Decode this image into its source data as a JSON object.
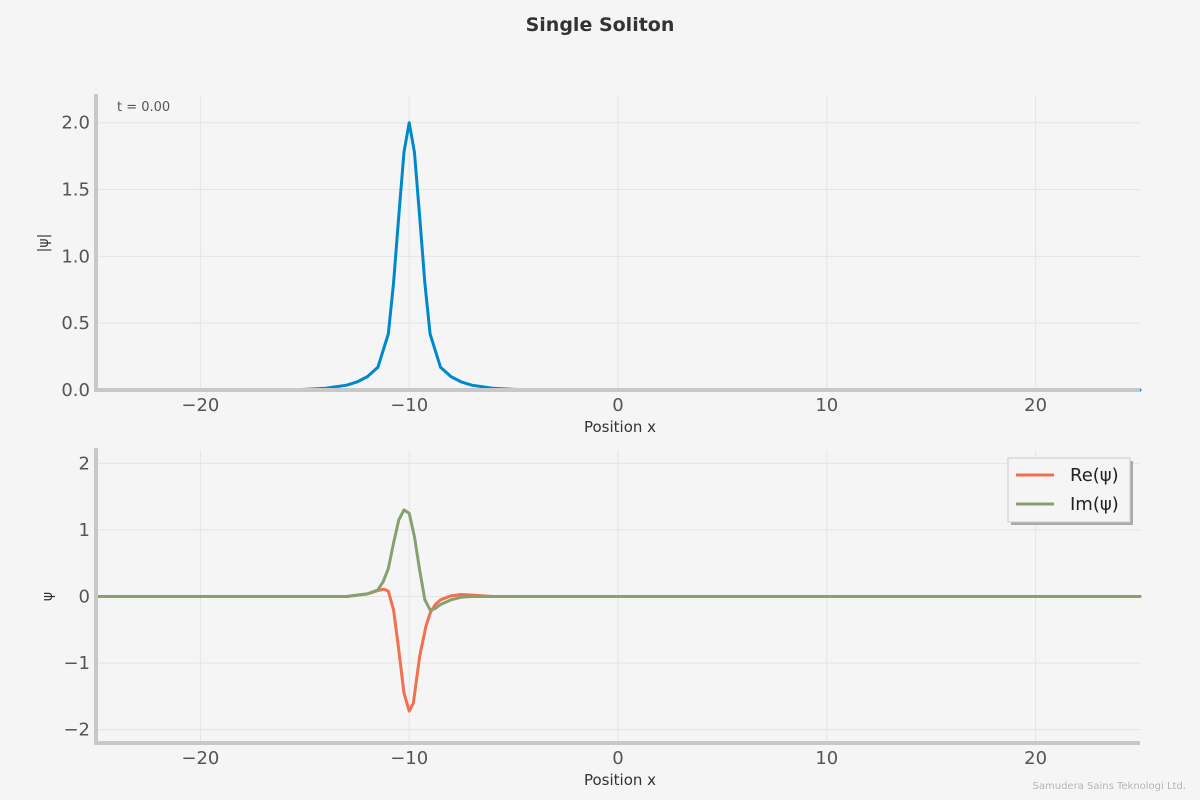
{
  "chart_data": [
    {
      "type": "line",
      "title": "Single Soliton",
      "xlabel": "Position x",
      "ylabel": "|ψ|",
      "xlim": [
        -25,
        25
      ],
      "ylim": [
        0,
        2.2
      ],
      "xticks": [
        "−20",
        "−10",
        "0",
        "10",
        "20"
      ],
      "xtick_values": [
        -20,
        -10,
        0,
        10,
        20
      ],
      "yticks": [
        "0.0",
        "0.5",
        "1.0",
        "1.5",
        "2.0"
      ],
      "ytick_values": [
        0,
        0.5,
        1.0,
        1.5,
        2.0
      ],
      "annotation": "t = 0.00",
      "grid": true,
      "series": [
        {
          "color": "#0088cc",
          "x": [
            -25,
            -16,
            -15,
            -14,
            -13,
            -12.5,
            -12,
            -11.5,
            -11,
            -10.75,
            -10.5,
            -10.25,
            -10,
            -9.75,
            -9.5,
            -9.25,
            -9,
            -8.5,
            -8,
            -7.5,
            -7,
            -6,
            -5,
            -4,
            25
          ],
          "y": [
            0,
            0.0,
            0.005,
            0.013,
            0.036,
            0.06,
            0.1,
            0.17,
            0.42,
            0.8,
            1.3,
            1.78,
            2.0,
            1.78,
            1.3,
            0.8,
            0.42,
            0.17,
            0.1,
            0.06,
            0.036,
            0.013,
            0.005,
            0.0,
            0
          ]
        }
      ]
    },
    {
      "type": "line",
      "xlabel": "Position x",
      "ylabel": "ψ",
      "xlim": [
        -25,
        25
      ],
      "ylim": [
        -2.2,
        2.2
      ],
      "xticks": [
        "−20",
        "−10",
        "0",
        "10",
        "20"
      ],
      "xtick_values": [
        -20,
        -10,
        0,
        10,
        20
      ],
      "yticks": [
        "−2",
        "−1",
        "0",
        "1",
        "2"
      ],
      "ytick_values": [
        -2,
        -1,
        0,
        1,
        2
      ],
      "legend": "top-right",
      "grid": true,
      "series": [
        {
          "name": "Re(ψ)",
          "color": "#f07050",
          "x": [
            -25,
            -13,
            -12,
            -11.5,
            -11.2,
            -11,
            -10.75,
            -10.5,
            -10.25,
            -10,
            -9.8,
            -9.5,
            -9.2,
            -9,
            -8.75,
            -8.5,
            -8,
            -7.5,
            -7,
            -6,
            25
          ],
          "y": [
            0,
            0.0,
            0.04,
            0.09,
            0.11,
            0.08,
            -0.2,
            -0.8,
            -1.45,
            -1.72,
            -1.6,
            -0.9,
            -0.45,
            -0.25,
            -0.12,
            -0.05,
            0.01,
            0.03,
            0.02,
            0.0,
            0
          ]
        },
        {
          "name": "Im(ψ)",
          "color": "#88a070",
          "x": [
            -25,
            -13,
            -12,
            -11.5,
            -11.25,
            -11,
            -10.75,
            -10.5,
            -10.25,
            -10,
            -9.75,
            -9.5,
            -9.25,
            -9,
            -8.75,
            -8.5,
            -8,
            -7.5,
            -7,
            25
          ],
          "y": [
            0,
            0.0,
            0.04,
            0.1,
            0.22,
            0.42,
            0.8,
            1.15,
            1.3,
            1.25,
            0.9,
            0.4,
            -0.05,
            -0.2,
            -0.18,
            -0.12,
            -0.05,
            -0.01,
            0.0,
            0
          ]
        }
      ]
    }
  ],
  "watermark": "Samudera Sains Teknologi Ltd."
}
